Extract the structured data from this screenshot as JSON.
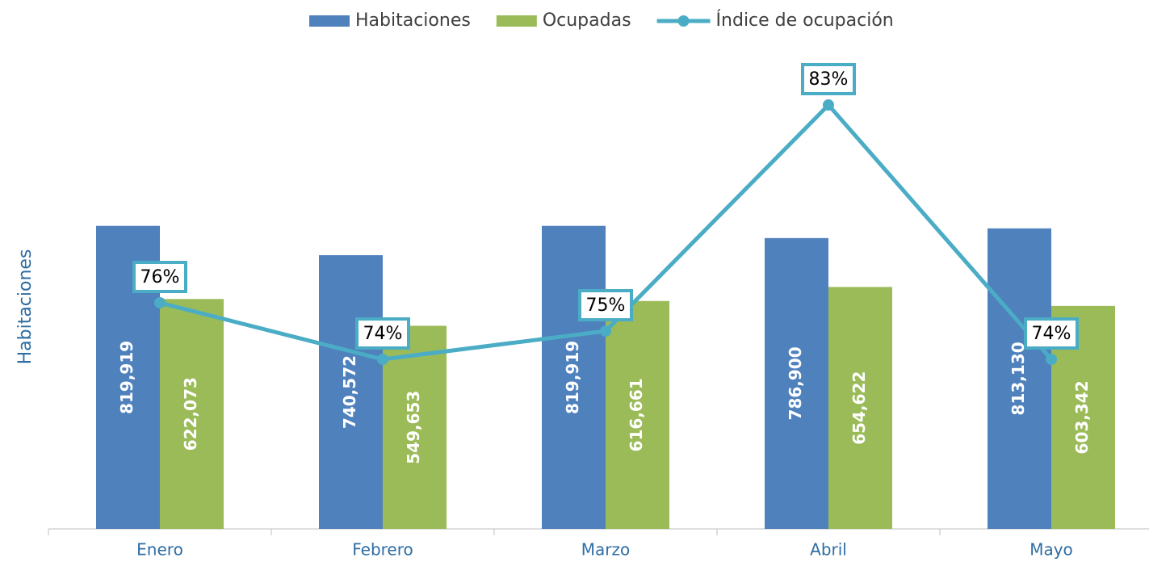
{
  "chart_data": {
    "type": "bar_line",
    "categories": [
      "Enero",
      "Febrero",
      "Marzo",
      "Abril",
      "Mayo"
    ],
    "y_label": "Habitaciones",
    "series": [
      {
        "name": "Habitaciones",
        "type": "bar",
        "color": "#4f81bd",
        "values": [
          819919,
          740572,
          819919,
          786900,
          813130
        ],
        "value_labels": [
          "819,919",
          "740,572",
          "819,919",
          "786,900",
          "813,130"
        ]
      },
      {
        "name": "Ocupadas",
        "type": "bar",
        "color": "#9bbb59",
        "values": [
          622073,
          549653,
          616661,
          654622,
          603342
        ],
        "value_labels": [
          "622,073",
          "549,653",
          "616,661",
          "654,622",
          "603,342"
        ]
      },
      {
        "name": "Índice de ocupación",
        "type": "line",
        "axis": "y2",
        "color": "#4bacc6",
        "values": [
          76,
          74,
          75,
          83,
          74
        ],
        "value_labels": [
          "76%",
          "74%",
          "75%",
          "83%",
          "74%"
        ]
      }
    ],
    "ylim": [
      0,
      1300000
    ],
    "y2lim": [
      68,
      85
    ],
    "legend": "top"
  }
}
